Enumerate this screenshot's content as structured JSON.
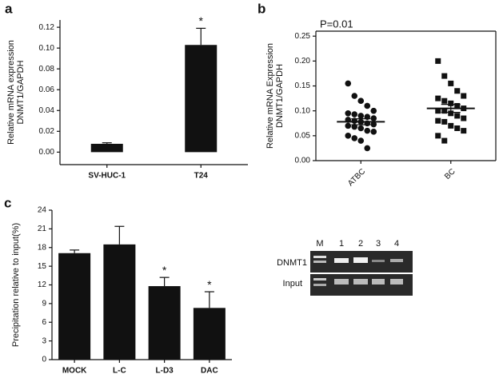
{
  "chart_data": [
    {
      "type": "bar",
      "panel": "a",
      "ylabel": [
        "Relative mRNA expression",
        "DNMT1/GAPDH"
      ],
      "categories": [
        "SV-HUC-1",
        "T24"
      ],
      "values": [
        0.008,
        0.103
      ],
      "errors": [
        0.001,
        0.016
      ],
      "value_annotations": [
        null,
        "*"
      ],
      "color": "#111111",
      "ylim": [
        -0.012,
        0.127
      ],
      "yticks": [
        {
          "value": 0,
          "label": "0.00"
        },
        {
          "value": 0.02,
          "label": "0.02"
        },
        {
          "value": 0.04,
          "label": "0.04"
        },
        {
          "value": 0.06,
          "label": "0.06"
        },
        {
          "value": 0.08,
          "label": "0.08"
        },
        {
          "value": 0.1,
          "label": "0.10"
        },
        {
          "value": 0.12,
          "label": "0.12"
        }
      ]
    },
    {
      "type": "scatter",
      "panel": "b",
      "annotation": "P=0.01",
      "ylabel": [
        "Relative mRNA Expression",
        "DNMT1/GAPDH"
      ],
      "categories": [
        "ATBC",
        "BC"
      ],
      "groups": [
        [
          0.155,
          0.13,
          0.12,
          0.11,
          0.1,
          0.095,
          0.093,
          0.09,
          0.088,
          0.085,
          0.082,
          0.08,
          0.078,
          0.075,
          0.073,
          0.07,
          0.068,
          0.065,
          0.06,
          0.058,
          0.05,
          0.045,
          0.04,
          0.025
        ],
        [
          0.2,
          0.17,
          0.155,
          0.14,
          0.13,
          0.125,
          0.12,
          0.115,
          0.11,
          0.105,
          0.1,
          0.1,
          0.095,
          0.09,
          0.085,
          0.08,
          0.078,
          0.07,
          0.065,
          0.06,
          0.05,
          0.04
        ]
      ],
      "markers": [
        "circle",
        "square"
      ],
      "means": [
        0.078,
        0.105
      ],
      "sem": [
        0.006,
        0.008
      ],
      "color": "#111111",
      "ylim": [
        0,
        0.26
      ],
      "yticks": [
        {
          "value": 0,
          "label": "0.00"
        },
        {
          "value": 0.05,
          "label": "0.05"
        },
        {
          "value": 0.1,
          "label": "0.10"
        },
        {
          "value": 0.15,
          "label": "0.15"
        },
        {
          "value": 0.2,
          "label": "0.20"
        },
        {
          "value": 0.25,
          "label": "0.25"
        }
      ]
    },
    {
      "type": "bar",
      "panel": "c",
      "ylabel": [
        "Precipitation relative to input(%)"
      ],
      "categories": [
        "MOCK",
        "L-C",
        "L-D3",
        "DAC"
      ],
      "values": [
        17.1,
        18.5,
        11.8,
        8.3
      ],
      "errors": [
        0.5,
        2.9,
        1.4,
        2.6
      ],
      "value_annotations": [
        null,
        null,
        "*",
        "*"
      ],
      "color": "#111111",
      "ylim": [
        0,
        24
      ],
      "yticks": [
        0,
        3,
        6,
        9,
        12,
        15,
        18,
        21,
        24
      ]
    }
  ],
  "gel": {
    "lanes": [
      "M",
      "1",
      "2",
      "3",
      "4"
    ],
    "rows": [
      "DNMT1",
      "Input"
    ]
  }
}
